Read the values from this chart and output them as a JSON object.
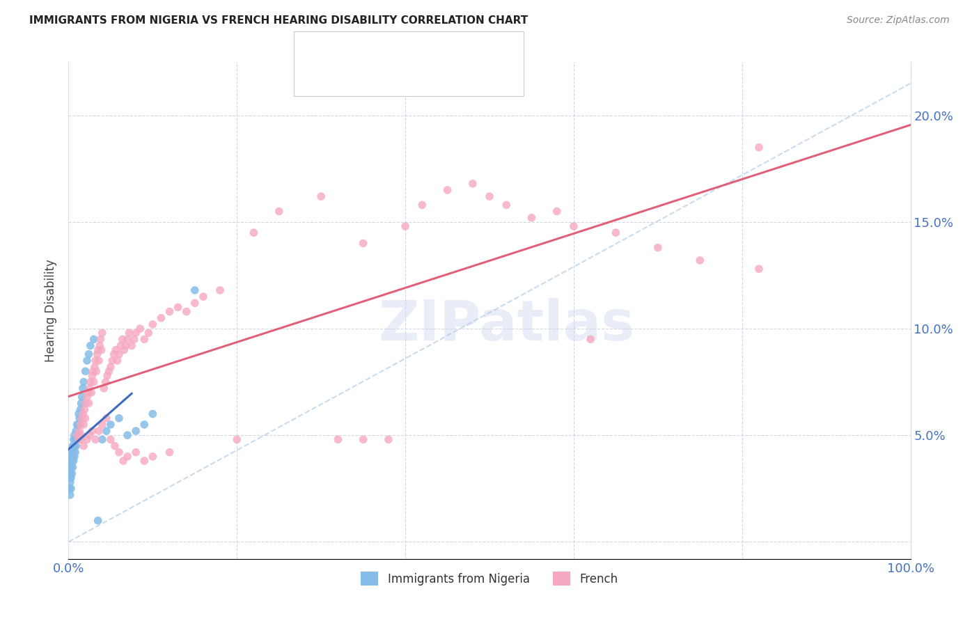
{
  "title": "IMMIGRANTS FROM NIGERIA VS FRENCH HEARING DISABILITY CORRELATION CHART",
  "source": "Source: ZipAtlas.com",
  "ylabel": "Hearing Disability",
  "xlim": [
    0.0,
    1.0
  ],
  "ylim": [
    -0.008,
    0.225
  ],
  "legend_label_blue": "Immigrants from Nigeria",
  "legend_label_pink": "French",
  "color_blue": "#85bce8",
  "color_pink": "#f5a8bf",
  "line_blue": "#3a6bbf",
  "line_pink": "#e0607a",
  "line_diag": "#b0cce8",
  "watermark": "ZIPatlas",
  "title_color": "#222222",
  "axis_color": "#4472c4",
  "nigeria_x": [
    0.001,
    0.001,
    0.001,
    0.002,
    0.002,
    0.002,
    0.002,
    0.003,
    0.003,
    0.003,
    0.003,
    0.004,
    0.004,
    0.004,
    0.005,
    0.005,
    0.005,
    0.006,
    0.006,
    0.006,
    0.007,
    0.007,
    0.007,
    0.008,
    0.008,
    0.009,
    0.009,
    0.01,
    0.01,
    0.011,
    0.012,
    0.012,
    0.013,
    0.014,
    0.015,
    0.016,
    0.017,
    0.018,
    0.02,
    0.022,
    0.024,
    0.026,
    0.03,
    0.035,
    0.04,
    0.045,
    0.05,
    0.06,
    0.07,
    0.08,
    0.09,
    0.1,
    0.15
  ],
  "nigeria_y": [
    0.025,
    0.03,
    0.035,
    0.028,
    0.033,
    0.038,
    0.022,
    0.03,
    0.035,
    0.04,
    0.025,
    0.032,
    0.038,
    0.042,
    0.035,
    0.04,
    0.045,
    0.038,
    0.042,
    0.048,
    0.04,
    0.045,
    0.05,
    0.042,
    0.048,
    0.045,
    0.052,
    0.048,
    0.055,
    0.05,
    0.055,
    0.06,
    0.058,
    0.062,
    0.065,
    0.068,
    0.072,
    0.075,
    0.08,
    0.085,
    0.088,
    0.092,
    0.095,
    0.01,
    0.048,
    0.052,
    0.055,
    0.058,
    0.05,
    0.052,
    0.055,
    0.06,
    0.118
  ],
  "french_x": [
    0.01,
    0.012,
    0.013,
    0.014,
    0.015,
    0.016,
    0.017,
    0.018,
    0.019,
    0.02,
    0.02,
    0.022,
    0.023,
    0.024,
    0.025,
    0.026,
    0.027,
    0.028,
    0.029,
    0.03,
    0.031,
    0.032,
    0.033,
    0.034,
    0.035,
    0.036,
    0.037,
    0.038,
    0.039,
    0.04,
    0.042,
    0.044,
    0.046,
    0.048,
    0.05,
    0.052,
    0.054,
    0.056,
    0.058,
    0.06,
    0.062,
    0.064,
    0.066,
    0.068,
    0.07,
    0.072,
    0.075,
    0.078,
    0.08,
    0.085,
    0.09,
    0.095,
    0.1,
    0.11,
    0.12,
    0.13,
    0.14,
    0.15,
    0.16,
    0.18,
    0.2,
    0.22,
    0.25,
    0.3,
    0.32,
    0.35,
    0.38,
    0.4,
    0.42,
    0.45,
    0.48,
    0.5,
    0.52,
    0.55,
    0.58,
    0.6,
    0.65,
    0.7,
    0.75,
    0.82,
    0.015,
    0.018,
    0.022,
    0.025,
    0.028,
    0.032,
    0.036,
    0.04,
    0.045,
    0.05,
    0.055,
    0.06,
    0.065,
    0.07,
    0.08,
    0.09,
    0.1,
    0.12,
    0.35,
    0.62,
    0.82
  ],
  "french_y": [
    0.05,
    0.048,
    0.052,
    0.055,
    0.05,
    0.058,
    0.06,
    0.055,
    0.062,
    0.058,
    0.065,
    0.068,
    0.07,
    0.065,
    0.072,
    0.075,
    0.07,
    0.078,
    0.08,
    0.075,
    0.082,
    0.085,
    0.08,
    0.088,
    0.09,
    0.085,
    0.092,
    0.095,
    0.09,
    0.098,
    0.072,
    0.075,
    0.078,
    0.08,
    0.082,
    0.085,
    0.088,
    0.09,
    0.085,
    0.088,
    0.092,
    0.095,
    0.09,
    0.092,
    0.095,
    0.098,
    0.092,
    0.095,
    0.098,
    0.1,
    0.095,
    0.098,
    0.102,
    0.105,
    0.108,
    0.11,
    0.108,
    0.112,
    0.115,
    0.118,
    0.048,
    0.145,
    0.155,
    0.162,
    0.048,
    0.14,
    0.048,
    0.148,
    0.158,
    0.165,
    0.168,
    0.162,
    0.158,
    0.152,
    0.155,
    0.148,
    0.145,
    0.138,
    0.132,
    0.128,
    0.048,
    0.045,
    0.048,
    0.05,
    0.052,
    0.048,
    0.052,
    0.055,
    0.058,
    0.048,
    0.045,
    0.042,
    0.038,
    0.04,
    0.042,
    0.038,
    0.04,
    0.042,
    0.048,
    0.095,
    0.185
  ]
}
